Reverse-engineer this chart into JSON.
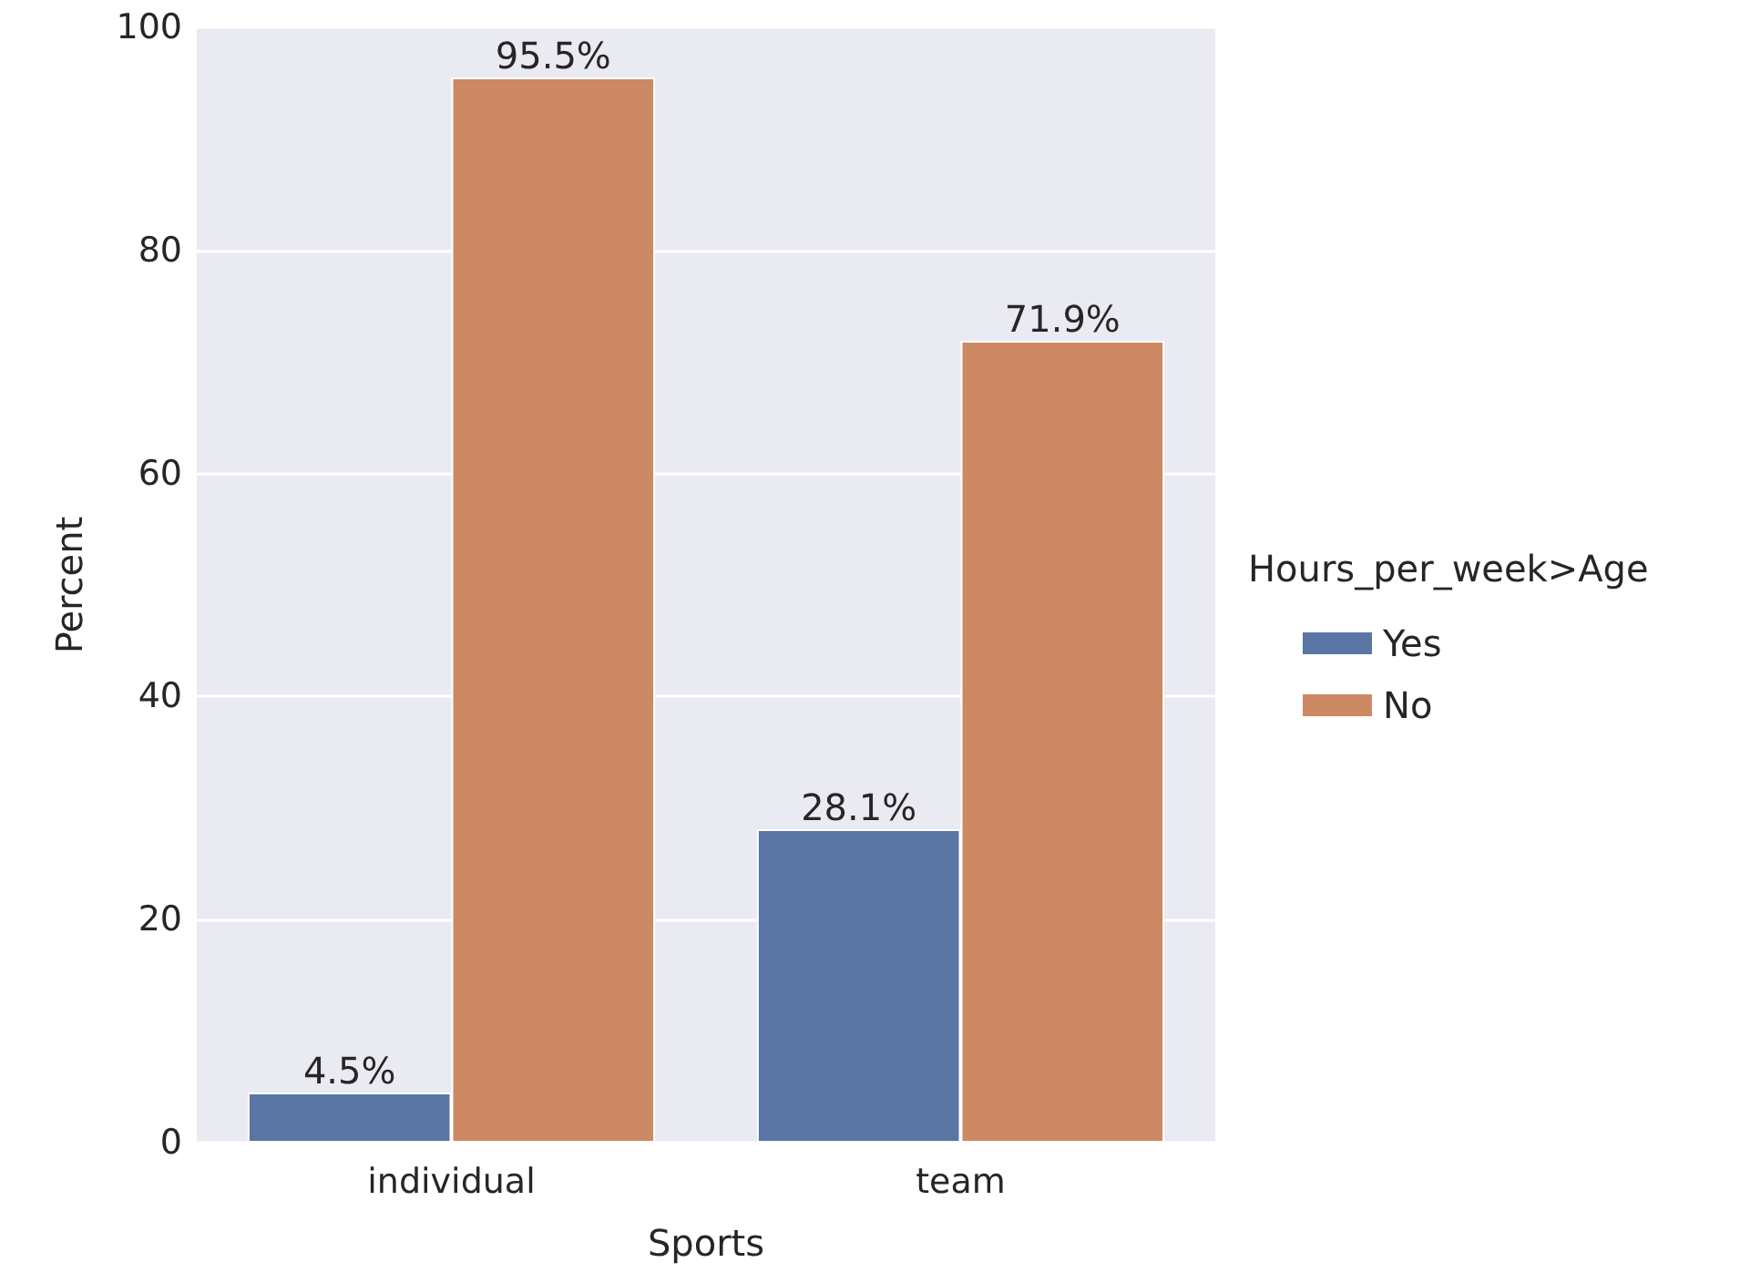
{
  "chart_data": {
    "type": "bar",
    "xlabel": "Sports",
    "ylabel": "Percent",
    "legend_title": "Hours_per_week>Age",
    "categories": [
      "individual",
      "team"
    ],
    "series": [
      {
        "name": "Yes",
        "color": "#5975a4",
        "values": [
          4.5,
          28.1
        ],
        "value_labels": [
          "4.5%",
          "28.1%"
        ]
      },
      {
        "name": "No",
        "color": "#cc8963",
        "values": [
          95.5,
          71.9
        ],
        "value_labels": [
          "95.5%",
          "71.9%"
        ]
      }
    ],
    "ylim": [
      0,
      100
    ],
    "yticks": [
      0,
      20,
      40,
      60,
      80,
      100
    ],
    "grid": "y",
    "legend": "right"
  }
}
